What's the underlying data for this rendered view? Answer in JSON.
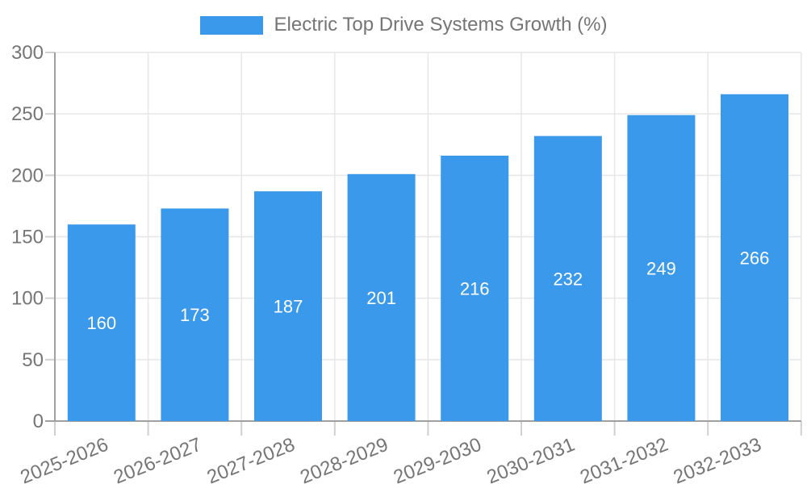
{
  "chart_data": {
    "type": "bar",
    "title": "Electric Top Drive Systems Growth (%)",
    "series_name": "Electric Top Drive Systems Growth (%)",
    "categories": [
      "2025-2026",
      "2026-2027",
      "2027-2028",
      "2028-2029",
      "2029-2030",
      "2030-2031",
      "2031-2032",
      "2032-2033"
    ],
    "values": [
      160,
      173,
      187,
      201,
      216,
      232,
      249,
      266
    ],
    "xlabel": "",
    "ylabel": "",
    "ylim": [
      0,
      300
    ],
    "yticks": [
      0,
      50,
      100,
      150,
      200,
      250,
      300
    ],
    "grid": true,
    "legend_position": "top",
    "value_labels_inside_bars": true,
    "x_labels_rotation_deg": -22,
    "colors": {
      "bar": "#3B99EC",
      "value_label": "#FFFFFF",
      "axis_text": "#757575",
      "grid": "#E6E6E6",
      "axis_line": "#A0A0A0",
      "tick": "#D0D0D0",
      "background": "#FFFFFF"
    }
  }
}
